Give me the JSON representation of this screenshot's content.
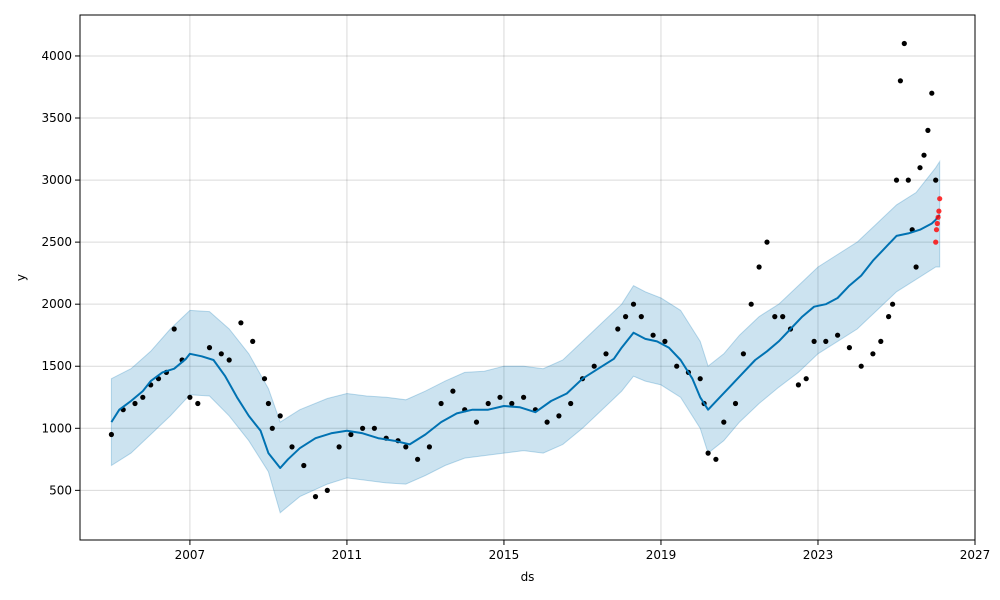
{
  "chart_data": {
    "type": "line",
    "xlabel": "ds",
    "ylabel": "y",
    "xlim": [
      2004.2,
      2027.0
    ],
    "ylim": [
      100,
      4330
    ],
    "x_ticks": [
      2007,
      2011,
      2015,
      2019,
      2023,
      2027
    ],
    "y_ticks": [
      500,
      1000,
      1500,
      2000,
      2500,
      3000,
      3500,
      4000
    ],
    "grid": true,
    "colors": {
      "observed": "#000000",
      "forecast_line": "#0072B2",
      "uncertainty_band": "#0072B2",
      "forecast_points": "#FF0000"
    },
    "series": [
      {
        "role": "forecast_line",
        "x": [
          2005.0,
          2005.2,
          2005.5,
          2005.8,
          2006.0,
          2006.3,
          2006.6,
          2006.9,
          2007.0,
          2007.3,
          2007.6,
          2007.9,
          2008.2,
          2008.5,
          2008.8,
          2009.0,
          2009.3,
          2009.5,
          2009.8,
          2010.2,
          2010.6,
          2011.0,
          2011.4,
          2011.8,
          2012.2,
          2012.6,
          2013.0,
          2013.4,
          2013.8,
          2014.2,
          2014.6,
          2015.0,
          2015.4,
          2015.8,
          2016.2,
          2016.6,
          2017.0,
          2017.4,
          2017.8,
          2018.0,
          2018.3,
          2018.6,
          2018.9,
          2019.2,
          2019.5,
          2019.8,
          2020.0,
          2020.2,
          2020.5,
          2020.8,
          2021.1,
          2021.4,
          2021.7,
          2022.0,
          2022.3,
          2022.6,
          2022.9,
          2023.2,
          2023.5,
          2023.8,
          2024.1,
          2024.4,
          2024.7,
          2025.0,
          2025.3,
          2025.6,
          2025.9,
          2026.0,
          2026.1
        ],
        "y": [
          1050,
          1150,
          1220,
          1300,
          1380,
          1450,
          1480,
          1560,
          1600,
          1580,
          1550,
          1420,
          1250,
          1100,
          980,
          800,
          680,
          750,
          840,
          920,
          960,
          980,
          960,
          920,
          900,
          870,
          950,
          1050,
          1120,
          1150,
          1150,
          1180,
          1170,
          1130,
          1220,
          1280,
          1400,
          1480,
          1560,
          1650,
          1770,
          1720,
          1700,
          1650,
          1550,
          1400,
          1250,
          1150,
          1250,
          1350,
          1450,
          1550,
          1620,
          1700,
          1800,
          1900,
          1980,
          2000,
          2050,
          2150,
          2230,
          2350,
          2450,
          2550,
          2570,
          2600,
          2650,
          2680,
          2720
        ]
      },
      {
        "role": "uncertainty_upper",
        "x": [
          2005.0,
          2005.5,
          2006.0,
          2006.5,
          2007.0,
          2007.5,
          2008.0,
          2008.5,
          2009.0,
          2009.3,
          2009.8,
          2010.5,
          2011.0,
          2011.5,
          2012.0,
          2012.5,
          2013.0,
          2013.5,
          2014.0,
          2014.5,
          2015.0,
          2015.5,
          2016.0,
          2016.5,
          2017.0,
          2017.5,
          2018.0,
          2018.3,
          2018.6,
          2019.0,
          2019.5,
          2020.0,
          2020.2,
          2020.6,
          2021.0,
          2021.5,
          2022.0,
          2022.5,
          2023.0,
          2023.5,
          2024.0,
          2024.5,
          2025.0,
          2025.5,
          2026.0,
          2026.1
        ],
        "y": [
          1400,
          1480,
          1620,
          1800,
          1950,
          1940,
          1800,
          1600,
          1320,
          1050,
          1150,
          1240,
          1280,
          1260,
          1250,
          1230,
          1300,
          1380,
          1450,
          1460,
          1500,
          1500,
          1480,
          1550,
          1700,
          1850,
          2000,
          2150,
          2100,
          2050,
          1950,
          1700,
          1500,
          1600,
          1750,
          1900,
          2000,
          2150,
          2300,
          2400,
          2500,
          2650,
          2800,
          2900,
          3100,
          3150
        ]
      },
      {
        "role": "uncertainty_lower",
        "x": [
          2005.0,
          2005.5,
          2006.0,
          2006.5,
          2007.0,
          2007.5,
          2008.0,
          2008.5,
          2009.0,
          2009.3,
          2009.8,
          2010.5,
          2011.0,
          2011.5,
          2012.0,
          2012.5,
          2013.0,
          2013.5,
          2014.0,
          2014.5,
          2015.0,
          2015.5,
          2016.0,
          2016.5,
          2017.0,
          2017.5,
          2018.0,
          2018.3,
          2018.6,
          2019.0,
          2019.5,
          2020.0,
          2020.2,
          2020.6,
          2021.0,
          2021.5,
          2022.0,
          2022.5,
          2023.0,
          2023.5,
          2024.0,
          2024.5,
          2025.0,
          2025.5,
          2026.0,
          2026.1
        ],
        "y": [
          700,
          800,
          950,
          1100,
          1270,
          1260,
          1100,
          900,
          650,
          320,
          450,
          550,
          600,
          580,
          560,
          550,
          620,
          700,
          760,
          780,
          800,
          820,
          800,
          870,
          1000,
          1150,
          1300,
          1420,
          1380,
          1350,
          1250,
          1000,
          800,
          900,
          1050,
          1200,
          1330,
          1450,
          1600,
          1700,
          1800,
          1950,
          2100,
          2200,
          2300,
          2300
        ]
      },
      {
        "role": "observed",
        "x": [
          2005.0,
          2005.3,
          2005.6,
          2005.8,
          2006.0,
          2006.2,
          2006.4,
          2006.6,
          2006.8,
          2007.0,
          2007.2,
          2007.5,
          2007.8,
          2008.0,
          2008.3,
          2008.6,
          2008.9,
          2009.0,
          2009.1,
          2009.3,
          2009.6,
          2009.9,
          2010.2,
          2010.5,
          2010.8,
          2011.1,
          2011.4,
          2011.7,
          2012.0,
          2012.3,
          2012.5,
          2012.8,
          2013.1,
          2013.4,
          2013.7,
          2014.0,
          2014.3,
          2014.6,
          2014.9,
          2015.2,
          2015.5,
          2015.8,
          2016.1,
          2016.4,
          2016.7,
          2017.0,
          2017.3,
          2017.6,
          2017.9,
          2018.1,
          2018.3,
          2018.5,
          2018.8,
          2019.1,
          2019.4,
          2019.7,
          2020.0,
          2020.1,
          2020.2,
          2020.4,
          2020.6,
          2020.9,
          2021.1,
          2021.3,
          2021.5,
          2021.7,
          2021.9,
          2022.1,
          2022.3,
          2022.5,
          2022.7,
          2022.9,
          2023.2,
          2023.5,
          2023.8,
          2024.1,
          2024.4,
          2024.6,
          2024.8,
          2024.9,
          2025.0,
          2025.1,
          2025.2,
          2025.3,
          2025.4,
          2025.5,
          2025.6,
          2025.7,
          2025.8,
          2025.9,
          2026.0
        ],
        "y": [
          950,
          1150,
          1200,
          1250,
          1350,
          1400,
          1450,
          1800,
          1550,
          1250,
          1200,
          1650,
          1600,
          1550,
          1850,
          1700,
          1400,
          1200,
          1000,
          1100,
          850,
          700,
          450,
          500,
          850,
          950,
          1000,
          1000,
          920,
          900,
          850,
          750,
          850,
          1200,
          1300,
          1150,
          1050,
          1200,
          1250,
          1200,
          1250,
          1150,
          1050,
          1100,
          1200,
          1400,
          1500,
          1600,
          1800,
          1900,
          2000,
          1900,
          1750,
          1700,
          1500,
          1450,
          1400,
          1200,
          800,
          750,
          1050,
          1200,
          1600,
          2000,
          2300,
          2500,
          1900,
          1900,
          1800,
          1350,
          1400,
          1700,
          1700,
          1750,
          1650,
          1500,
          1600,
          1700,
          1900,
          2000,
          3000,
          3800,
          4100,
          3000,
          2600,
          2300,
          3100,
          3200,
          3400,
          3700,
          3000
        ]
      },
      {
        "role": "forecast_points",
        "x": [
          2026.0,
          2026.02,
          2026.04,
          2026.06,
          2026.08,
          2026.1
        ],
        "y": [
          2500,
          2600,
          2650,
          2700,
          2750,
          2850
        ]
      }
    ]
  }
}
